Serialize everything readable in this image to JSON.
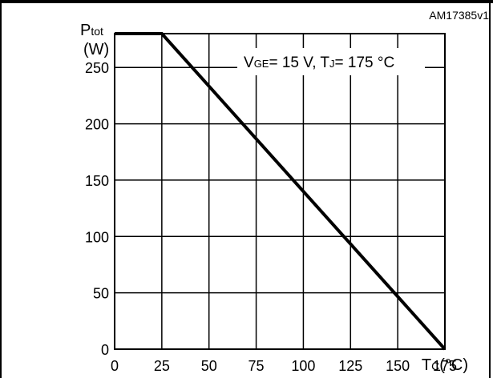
{
  "figure_id": "AM17385v1",
  "annotation": {
    "vge_sym": "V",
    "vge_sub": "GE",
    "vge_val": "= 15 V, ",
    "tj_sym": "T",
    "tj_sub": "J",
    "tj_val": "= 175 °C"
  },
  "chart_data": {
    "type": "line",
    "title": "",
    "ylabel": {
      "symbol": "P",
      "sub": "tot",
      "unit": "(W)"
    },
    "xlabel": {
      "symbol": "T",
      "sub": "C",
      "unit": "(°C)"
    },
    "xlim": [
      0,
      175
    ],
    "ylim": [
      0,
      280
    ],
    "x_ticks": [
      0,
      25,
      50,
      75,
      100,
      125,
      150,
      175
    ],
    "y_ticks": [
      0,
      50,
      100,
      150,
      200,
      250
    ],
    "grid": true,
    "series": [
      {
        "name": "",
        "x": [
          0,
          25,
          175
        ],
        "y": [
          280,
          280,
          0
        ]
      }
    ]
  }
}
